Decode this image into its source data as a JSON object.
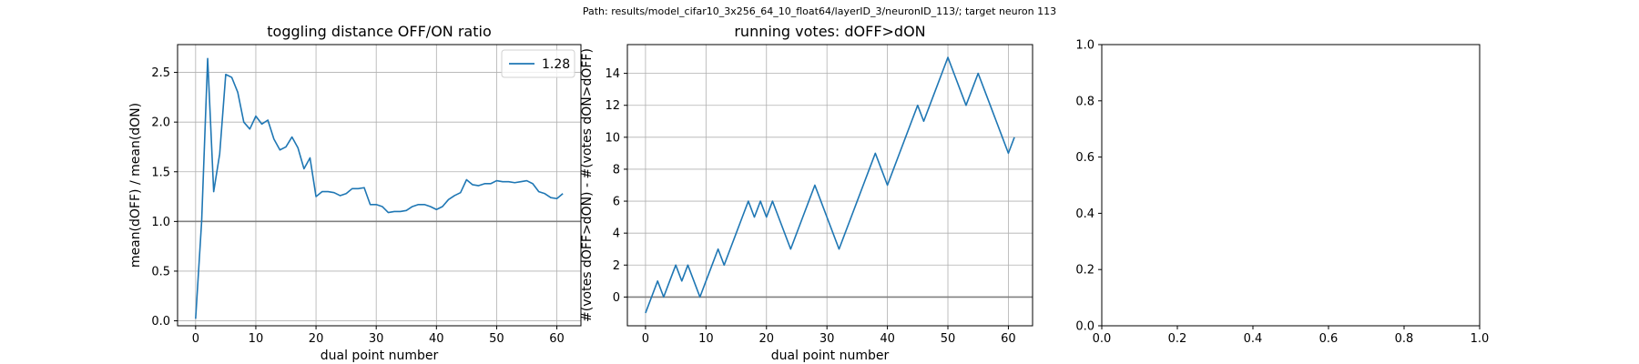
{
  "suptitle": "Path: results/model_cifar10_3x256_64_10_float64/layerID_3/neuronID_113/; target neuron 113",
  "chart_data": [
    {
      "type": "line",
      "title": "toggling distance OFF/ON ratio",
      "xlabel": "dual point number",
      "ylabel": "mean(dOFF) / mean(dON)",
      "xlim": [
        -3,
        64
      ],
      "ylim": [
        -0.05,
        2.78
      ],
      "xticks": [
        0,
        10,
        20,
        30,
        40,
        50,
        60
      ],
      "yticks": [
        0.0,
        0.5,
        1.0,
        1.5,
        2.0,
        2.5
      ],
      "ytick_labels": [
        "0.0",
        "0.5",
        "1.0",
        "1.5",
        "2.0",
        "2.5"
      ],
      "grid": true,
      "legend": "top-right",
      "reference_line": 1.0,
      "series": [
        {
          "name": "1.28",
          "color": "#1f77b4",
          "x": [
            0,
            1,
            2,
            3,
            4,
            5,
            6,
            7,
            8,
            9,
            10,
            11,
            12,
            13,
            14,
            15,
            16,
            17,
            18,
            19,
            20,
            21,
            22,
            23,
            24,
            25,
            26,
            27,
            28,
            29,
            30,
            31,
            32,
            33,
            34,
            35,
            36,
            37,
            38,
            39,
            40,
            41,
            42,
            43,
            44,
            45,
            46,
            47,
            48,
            49,
            50,
            51,
            52,
            53,
            54,
            55,
            56,
            57,
            58,
            59,
            60,
            61
          ],
          "values": [
            0.02,
            1.0,
            2.64,
            1.3,
            1.68,
            2.48,
            2.45,
            2.3,
            2.0,
            1.93,
            2.06,
            1.98,
            2.02,
            1.83,
            1.72,
            1.75,
            1.85,
            1.74,
            1.53,
            1.64,
            1.25,
            1.3,
            1.3,
            1.29,
            1.26,
            1.28,
            1.33,
            1.33,
            1.34,
            1.17,
            1.17,
            1.15,
            1.09,
            1.1,
            1.1,
            1.11,
            1.15,
            1.17,
            1.17,
            1.15,
            1.12,
            1.15,
            1.22,
            1.26,
            1.29,
            1.42,
            1.37,
            1.36,
            1.38,
            1.38,
            1.41,
            1.4,
            1.4,
            1.39,
            1.4,
            1.41,
            1.38,
            1.3,
            1.28,
            1.24,
            1.23,
            1.28
          ]
        }
      ]
    },
    {
      "type": "line",
      "title": "running votes: dOFF>dON",
      "xlabel": "dual point number",
      "ylabel": "#(votes dOFF>dON) - #(votes dON>dOFF)",
      "xlim": [
        -3,
        64
      ],
      "ylim": [
        -1.8,
        15.8
      ],
      "xticks": [
        0,
        10,
        20,
        30,
        40,
        50,
        60
      ],
      "yticks": [
        0,
        2,
        4,
        6,
        8,
        10,
        12,
        14
      ],
      "ytick_labels": [
        "0",
        "2",
        "4",
        "6",
        "8",
        "10",
        "12",
        "14"
      ],
      "grid": true,
      "reference_line": 0,
      "series": [
        {
          "color": "#1f77b4",
          "x": [
            0,
            1,
            2,
            3,
            4,
            5,
            6,
            7,
            8,
            9,
            10,
            11,
            12,
            13,
            14,
            15,
            16,
            17,
            18,
            19,
            20,
            21,
            22,
            23,
            24,
            25,
            26,
            27,
            28,
            29,
            30,
            31,
            32,
            33,
            34,
            35,
            36,
            37,
            38,
            39,
            40,
            41,
            42,
            43,
            44,
            45,
            46,
            47,
            48,
            49,
            50,
            51,
            52,
            53,
            54,
            55,
            56,
            57,
            58,
            59,
            60,
            61
          ],
          "values": [
            -1,
            0,
            1,
            0,
            1,
            2,
            1,
            2,
            1,
            0,
            1,
            2,
            3,
            2,
            3,
            4,
            5,
            6,
            5,
            6,
            5,
            6,
            5,
            4,
            3,
            4,
            5,
            6,
            7,
            6,
            5,
            4,
            3,
            4,
            5,
            6,
            7,
            8,
            9,
            8,
            7,
            8,
            9,
            10,
            11,
            12,
            11,
            12,
            13,
            14,
            15,
            14,
            13,
            12,
            13,
            14,
            13,
            12,
            11,
            10,
            9,
            10
          ]
        }
      ]
    },
    {
      "type": "line",
      "title": "",
      "xlabel": "",
      "ylabel": "",
      "xlim": [
        0,
        1
      ],
      "ylim": [
        0,
        1
      ],
      "xticks": [
        0.0,
        0.2,
        0.4,
        0.6,
        0.8,
        1.0
      ],
      "yticks": [
        0.0,
        0.2,
        0.4,
        0.6,
        0.8,
        1.0
      ],
      "xtick_labels": [
        "0.0",
        "0.2",
        "0.4",
        "0.6",
        "0.8",
        "1.0"
      ],
      "ytick_labels": [
        "0.0",
        "0.2",
        "0.4",
        "0.6",
        "0.8",
        "1.0"
      ],
      "grid": false,
      "series": []
    }
  ]
}
